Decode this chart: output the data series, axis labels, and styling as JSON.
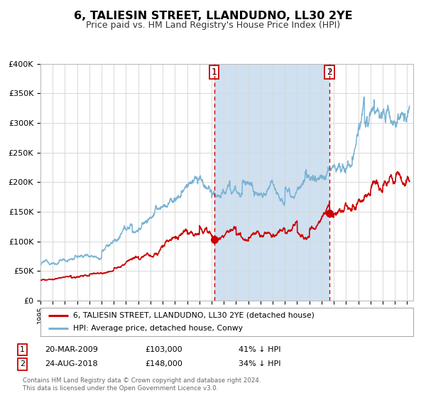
{
  "title": "6, TALIESIN STREET, LLANDUDNO, LL30 2YE",
  "subtitle": "Price paid vs. HM Land Registry's House Price Index (HPI)",
  "ylim": [
    0,
    400000
  ],
  "xlim_start": 1995.0,
  "xlim_end": 2025.5,
  "yticks": [
    0,
    50000,
    100000,
    150000,
    200000,
    250000,
    300000,
    350000,
    400000
  ],
  "ytick_labels": [
    "£0",
    "£50K",
    "£100K",
    "£150K",
    "£200K",
    "£250K",
    "£300K",
    "£350K",
    "£400K"
  ],
  "hpi_color": "#7ab3d4",
  "price_color": "#cc0000",
  "marker_color": "#cc0000",
  "grid_color": "#d8d8d8",
  "plot_bg_color": "#ffffff",
  "shade_color": "#cfe0f0",
  "vline_color": "#cc0000",
  "hatch_color": "#cccccc",
  "title_fontsize": 11.5,
  "subtitle_fontsize": 9,
  "sale1_date": 2009.22,
  "sale1_price": 103000,
  "sale2_date": 2018.65,
  "sale2_price": 148000,
  "legend_line1": "6, TALIESIN STREET, LLANDUDNO, LL30 2YE (detached house)",
  "legend_line2": "HPI: Average price, detached house, Conwy",
  "table_row1": [
    "1",
    "20-MAR-2009",
    "£103,000",
    "41% ↓ HPI"
  ],
  "table_row2": [
    "2",
    "24-AUG-2018",
    "£148,000",
    "34% ↓ HPI"
  ],
  "footer_line1": "Contains HM Land Registry data © Crown copyright and database right 2024.",
  "footer_line2": "This data is licensed under the Open Government Licence v3.0."
}
